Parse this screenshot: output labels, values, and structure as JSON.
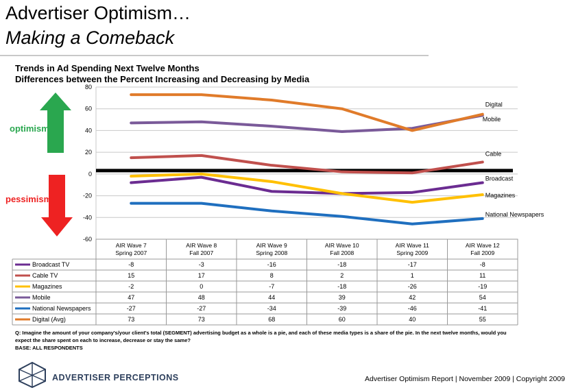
{
  "header": {
    "title_line1": "Advertiser Optimism…",
    "title_line2": "Making a Comeback"
  },
  "chart_data": {
    "type": "line",
    "title": "Trends in Ad Spending Next Twelve Months",
    "subtitle": "Differences between the Percent Increasing and Decreasing by Media",
    "categories": [
      [
        "AIR Wave 7",
        "Spring 2007"
      ],
      [
        "AIR Wave 8",
        "Fall 2007"
      ],
      [
        "AIR Wave 9",
        "Spring 2008"
      ],
      [
        "AIR Wave 10",
        "Fall 2008"
      ],
      [
        "AIR Wave 11",
        "Spring 2009"
      ],
      [
        "AIR Wave 12",
        "Fall 2009"
      ]
    ],
    "ylim": [
      -60,
      80
    ],
    "yticks": [
      80,
      60,
      40,
      20,
      0,
      -20,
      -40,
      -60
    ],
    "grid": true,
    "series": [
      {
        "name": "Broadcast TV",
        "end_label": "Broadcast",
        "color": "#6b2c91",
        "values": [
          -8,
          -3,
          -16,
          -18,
          -17,
          -8
        ]
      },
      {
        "name": "Cable TV",
        "end_label": "Cable",
        "color": "#c0504d",
        "values": [
          15,
          17,
          8,
          2,
          1,
          11
        ]
      },
      {
        "name": "Magazines",
        "end_label": "Magazines",
        "color": "#ffc000",
        "values": [
          -2,
          0,
          -7,
          -18,
          -26,
          -19
        ]
      },
      {
        "name": "Mobile",
        "end_label": "Mobile",
        "color": "#7a5a99",
        "values": [
          47,
          48,
          44,
          39,
          42,
          54
        ]
      },
      {
        "name": "National Newspapers",
        "end_label": "National Newspapers",
        "color": "#1f6fbf",
        "values": [
          -27,
          -27,
          -34,
          -39,
          -46,
          -41
        ]
      },
      {
        "name": "Digital (Avg)",
        "end_label": "Digital",
        "color": "#e07b2a",
        "values": [
          73,
          73,
          68,
          60,
          40,
          55
        ]
      }
    ]
  },
  "side_labels": {
    "optimism": "optimism",
    "pessimism": "pessimism",
    "optimism_color": "#2aa74f",
    "pessimism_color": "#ee2222"
  },
  "footnote": {
    "question": "Q: Imagine the amount of your company's/your client's total (SEGMENT) advertising budget as a whole is a pie, and each of these media types is a share of the pie. In the next twelve months, would you expect the share spent on each to increase, decrease or stay the same?",
    "base": "BASE: ALL RESPONDENTS"
  },
  "footer": {
    "brand": "ADVERTISER PERCEPTIONS",
    "report": "Advertiser Optimism Report | November 2009 | Copyright 2009"
  }
}
